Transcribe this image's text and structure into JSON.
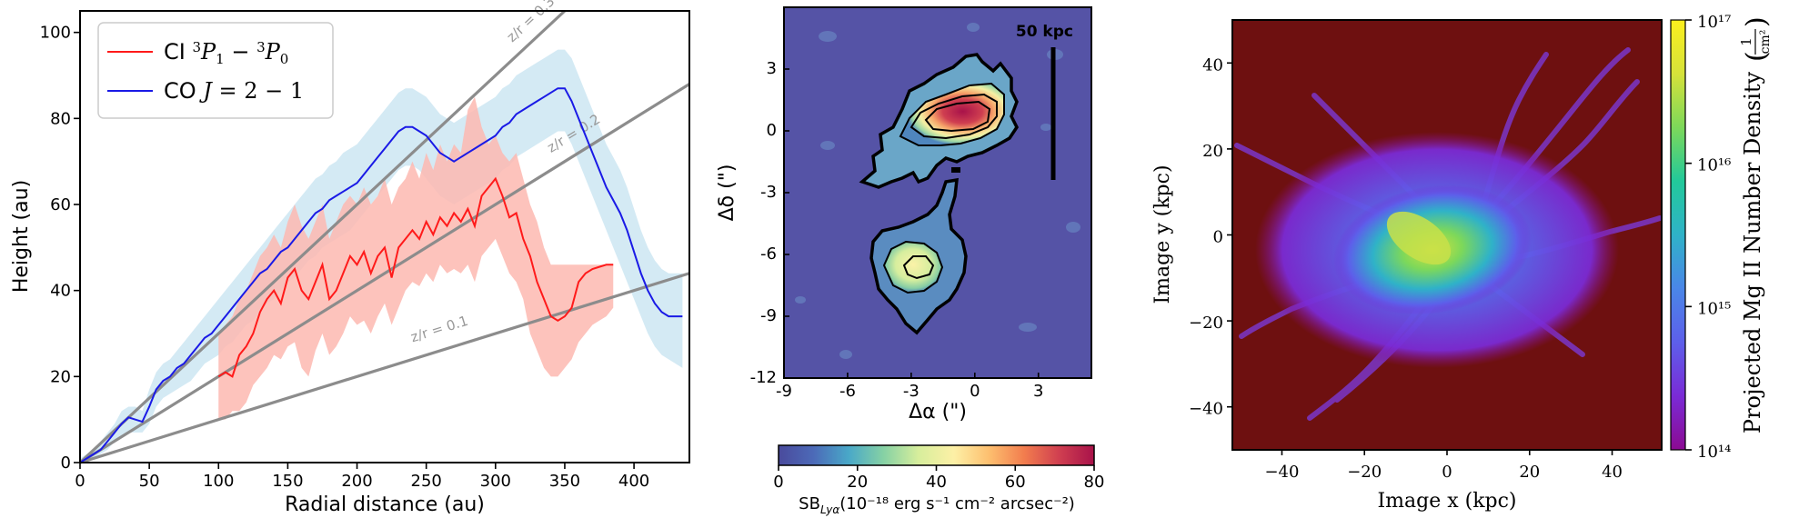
{
  "chart_data": [
    {
      "type": "line",
      "xlabel": "Radial distance (au)",
      "ylabel": "Height (au)",
      "xlim": [
        0,
        440
      ],
      "ylim": [
        0,
        105
      ],
      "xticks": [
        "0",
        "50",
        "100",
        "150",
        "200",
        "250",
        "300",
        "350",
        "400"
      ],
      "yticks": [
        "0",
        "20",
        "40",
        "60",
        "80",
        "100"
      ],
      "legend_position": "top-left",
      "grid": false,
      "series": [
        {
          "name": "CI ³P₁ − ³P₀",
          "color": "#ff1a1a",
          "band_color": "#fdb9b0",
          "x": [
            100,
            105,
            110,
            115,
            120,
            125,
            130,
            135,
            140,
            145,
            150,
            155,
            160,
            165,
            170,
            175,
            180,
            185,
            190,
            195,
            200,
            205,
            210,
            215,
            220,
            225,
            230,
            235,
            240,
            245,
            250,
            255,
            260,
            265,
            270,
            275,
            280,
            285,
            290,
            295,
            300,
            305,
            310,
            315,
            320,
            325,
            330,
            335,
            340,
            345,
            350,
            355,
            360,
            365,
            370,
            375,
            380,
            385
          ],
          "y": [
            20,
            21,
            20,
            25,
            27,
            30,
            35,
            38,
            40,
            37,
            43,
            45,
            40,
            38,
            42,
            46,
            38,
            40,
            44,
            48,
            46,
            49,
            44,
            48,
            50,
            43,
            50,
            52,
            54,
            52,
            56,
            53,
            57,
            55,
            58,
            56,
            59,
            55,
            62,
            64,
            66,
            62,
            57,
            58,
            52,
            48,
            42,
            38,
            34,
            33,
            34,
            36,
            42,
            44,
            45,
            45.5,
            46,
            46
          ],
          "lower": [
            10,
            10,
            12,
            12,
            14,
            18,
            20,
            22,
            25,
            24,
            27,
            28,
            22,
            20,
            26,
            30,
            25,
            27,
            30,
            34,
            32,
            33,
            30,
            34,
            37,
            32,
            36,
            40,
            42,
            41,
            44,
            42,
            46,
            44,
            45,
            44,
            46,
            42,
            48,
            50,
            52,
            48,
            44,
            42,
            38,
            30,
            26,
            22,
            20,
            20,
            22,
            24,
            28,
            30,
            32,
            33,
            34,
            36
          ],
          "upper": [
            30,
            32,
            34,
            38,
            40,
            44,
            48,
            50,
            53,
            50,
            56,
            60,
            55,
            52,
            56,
            60,
            52,
            56,
            60,
            62,
            60,
            64,
            60,
            62,
            66,
            60,
            64,
            66,
            70,
            66,
            72,
            68,
            74,
            70,
            74,
            72,
            82,
            85,
            78,
            74,
            76,
            72,
            70,
            72,
            66,
            60,
            56,
            50,
            46,
            46,
            46,
            46,
            46,
            46,
            46,
            46,
            46,
            46
          ]
        },
        {
          "name": "CO J = 2 − 1",
          "color": "#1a1ae6",
          "band_color": "#cde6f2",
          "x": [
            0,
            5,
            10,
            15,
            20,
            25,
            30,
            35,
            40,
            45,
            50,
            55,
            60,
            65,
            70,
            75,
            80,
            85,
            90,
            95,
            100,
            105,
            110,
            115,
            120,
            125,
            130,
            135,
            140,
            145,
            150,
            155,
            160,
            165,
            170,
            175,
            180,
            185,
            190,
            195,
            200,
            205,
            210,
            215,
            220,
            225,
            230,
            235,
            240,
            245,
            250,
            255,
            260,
            265,
            270,
            275,
            280,
            285,
            290,
            295,
            300,
            305,
            310,
            315,
            320,
            325,
            330,
            335,
            340,
            345,
            350,
            355,
            360,
            365,
            370,
            375,
            380,
            385,
            390,
            395,
            400,
            405,
            410,
            415,
            420,
            425,
            430,
            435
          ],
          "y": [
            0,
            1,
            2,
            3,
            5,
            7,
            9,
            10.5,
            10,
            9.5,
            13,
            17,
            19,
            20,
            22,
            23,
            25,
            27,
            29,
            30,
            32,
            34,
            36,
            38,
            40,
            42,
            44,
            45,
            47,
            49,
            50,
            52,
            54,
            56,
            58,
            59,
            61,
            62,
            63,
            64,
            65,
            67,
            69,
            71,
            73,
            75,
            77,
            78,
            78,
            77,
            76,
            74,
            72,
            71,
            70,
            71,
            72,
            73,
            74,
            75,
            76,
            78,
            79,
            81,
            82,
            83,
            84,
            85,
            86,
            87,
            87,
            84,
            80,
            76,
            72,
            68,
            64,
            61,
            58,
            54,
            49,
            44,
            40,
            37,
            35,
            34,
            34,
            34
          ],
          "lower": [
            0,
            0,
            1,
            2,
            3,
            5,
            6,
            7,
            7,
            7,
            9,
            13,
            15,
            16,
            17,
            18,
            19,
            21,
            23,
            24,
            25,
            27,
            28,
            30,
            32,
            33,
            35,
            37,
            38,
            40,
            42,
            43,
            45,
            47,
            48,
            50,
            51,
            52,
            53,
            54,
            56,
            58,
            60,
            62,
            64,
            66,
            68,
            69,
            69,
            68,
            66,
            64,
            62,
            61,
            60,
            61,
            62,
            63,
            64,
            65,
            66,
            68,
            69,
            71,
            72,
            73,
            74,
            75,
            76,
            77,
            77,
            74,
            70,
            66,
            62,
            58,
            54,
            50,
            46,
            42,
            38,
            34,
            30,
            27,
            25,
            24,
            23,
            22
          ],
          "upper": [
            1,
            2,
            3,
            5,
            7,
            9,
            12,
            13,
            13,
            12,
            17,
            21,
            23,
            24,
            26,
            28,
            30,
            32,
            34,
            36,
            38,
            40,
            42,
            44,
            46,
            48,
            50,
            52,
            54,
            56,
            58,
            60,
            62,
            64,
            66,
            67,
            69,
            70,
            72,
            73,
            74,
            76,
            78,
            80,
            82,
            84,
            86,
            87,
            87,
            86,
            85,
            83,
            81,
            80,
            79,
            80,
            81,
            82,
            83,
            84,
            85,
            87,
            88,
            90,
            91,
            92,
            93,
            94,
            95,
            96,
            96,
            94,
            90,
            86,
            82,
            78,
            74,
            71,
            68,
            64,
            59,
            54,
            50,
            47,
            45,
            44,
            44,
            44
          ]
        }
      ],
      "reference_lines": [
        {
          "label": "z/r = 0.3",
          "slope": 0.3,
          "color": "#8c8c8c"
        },
        {
          "label": "z/r = 0.2",
          "slope": 0.2,
          "color": "#8c8c8c"
        },
        {
          "label": "z/r = 0.1",
          "slope": 0.1,
          "color": "#8c8c8c"
        }
      ]
    },
    {
      "type": "heatmap",
      "xlabel": "Δα (\")",
      "ylabel": "Δδ (\")",
      "xlim": [
        -9,
        5.5
      ],
      "ylim": [
        -12,
        6
      ],
      "xticks": [
        "-9",
        "-6",
        "-3",
        "0",
        "3"
      ],
      "yticks": [
        "-12",
        "-9",
        "-6",
        "-3",
        "0",
        "3"
      ],
      "scalebar_label": "50 kpc",
      "colorbar": {
        "label_main": "SB",
        "label_sub": "Lyα",
        "label_rest": "(10⁻¹⁸ erg s⁻¹ cm⁻² arcsec⁻²)",
        "range": [
          0,
          80
        ],
        "ticks": [
          "0",
          "20",
          "40",
          "60",
          "80"
        ],
        "colors": [
          "#4a4a9c",
          "#4c6ab8",
          "#49a8c8",
          "#86d1a4",
          "#d7ee9c",
          "#fdf0a6",
          "#fdbf6f",
          "#f27d4e",
          "#d03f50",
          "#a8124a"
        ]
      },
      "background_color": "#5553a6"
    },
    {
      "type": "heatmap",
      "xlabel": "Image x  (kpc)",
      "ylabel": "Image y  (kpc)",
      "xlim": [
        -52,
        52
      ],
      "ylim": [
        -50,
        50
      ],
      "xticks": [
        "−40",
        "−20",
        "0",
        "20",
        "40"
      ],
      "yticks": [
        "−40",
        "−20",
        "0",
        "20",
        "40"
      ],
      "colorbar": {
        "label": "Projected Mg II Number Density",
        "unit_num": "1",
        "unit_den": "cm²",
        "scale": "log",
        "ticks": [
          "10¹⁴",
          "10¹⁵",
          "10¹⁶",
          "10¹⁷"
        ],
        "colors": [
          "#8b0a92",
          "#7a2bd6",
          "#5d5fea",
          "#4a86e8",
          "#2fb2c8",
          "#22c99a",
          "#7dd85a",
          "#d6e23a",
          "#fbef1e"
        ]
      },
      "background_color": "#6e1010"
    }
  ]
}
